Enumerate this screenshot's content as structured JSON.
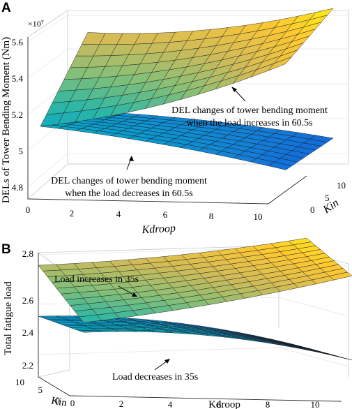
{
  "chart_data": [
    {
      "panel": "A",
      "type": "surface",
      "zlabel": "DELs of Tower Bending Moment (Nm)",
      "xlabel": "Kdroop",
      "ylabel": "Kin",
      "z_exponent": "×10⁷",
      "x_ticks": [
        "0",
        "2",
        "4",
        "6",
        "8",
        "10"
      ],
      "y_ticks": [
        "0",
        "5",
        "10"
      ],
      "z_ticks": [
        "4.8",
        "5",
        "5.2",
        "5.4",
        "5.6"
      ],
      "xlim": [
        0,
        11
      ],
      "ylim": [
        0,
        11
      ],
      "zlim": [
        4.75,
        5.65
      ],
      "colormap": "parula",
      "series": [
        {
          "name": "load increases",
          "annotation": [
            "DEL changes of tower bending moment",
            "when the load increases in 60.5s"
          ],
          "z_corners": {
            "k0_i0": 5.12,
            "k11_i0": 5.5,
            "k0_i11": 5.45,
            "k11_i11": 5.62
          },
          "curvature": -0.05
        },
        {
          "name": "load decreases",
          "annotation": [
            "DEL changes of tower bending moment",
            "when  the load decreases in 60.5s"
          ],
          "z_corners": {
            "k0_i0": 5.12,
            "k11_i0": 4.92,
            "k0_i11": 5.02,
            "k11_i11": 4.91
          },
          "curvature": 0.02
        }
      ]
    },
    {
      "panel": "B",
      "type": "surface",
      "zlabel": "Total fatigue load",
      "xlabel": "Kdroop",
      "ylabel": "Kin",
      "x_ticks": [
        "0",
        "2",
        "4",
        "6",
        "8",
        "10"
      ],
      "y_ticks": [
        "0",
        "5",
        "10"
      ],
      "z_ticks": [
        "2.2",
        "2.4",
        "2.6",
        "2.8"
      ],
      "xlim": [
        0,
        11
      ],
      "ylim": [
        0,
        11
      ],
      "zlim": [
        2.15,
        2.82
      ],
      "colormap": "parula",
      "series": [
        {
          "name": "load increases",
          "annotation": [
            "Load increases in 35s"
          ],
          "z_corners": {
            "k0_i10": 2.47,
            "k11_i10": 2.73,
            "k0_i0": 2.62,
            "k11_i0": 2.78
          },
          "curvature": -0.02
        },
        {
          "name": "load decreases",
          "annotation": [
            "Load decreases in 35s"
          ],
          "z_corners": {
            "k0_i10": 2.42,
            "k11_i10": 2.3,
            "k0_i0": 2.36,
            "k11_i0": 2.22
          },
          "curvature": 0.05
        }
      ]
    }
  ]
}
